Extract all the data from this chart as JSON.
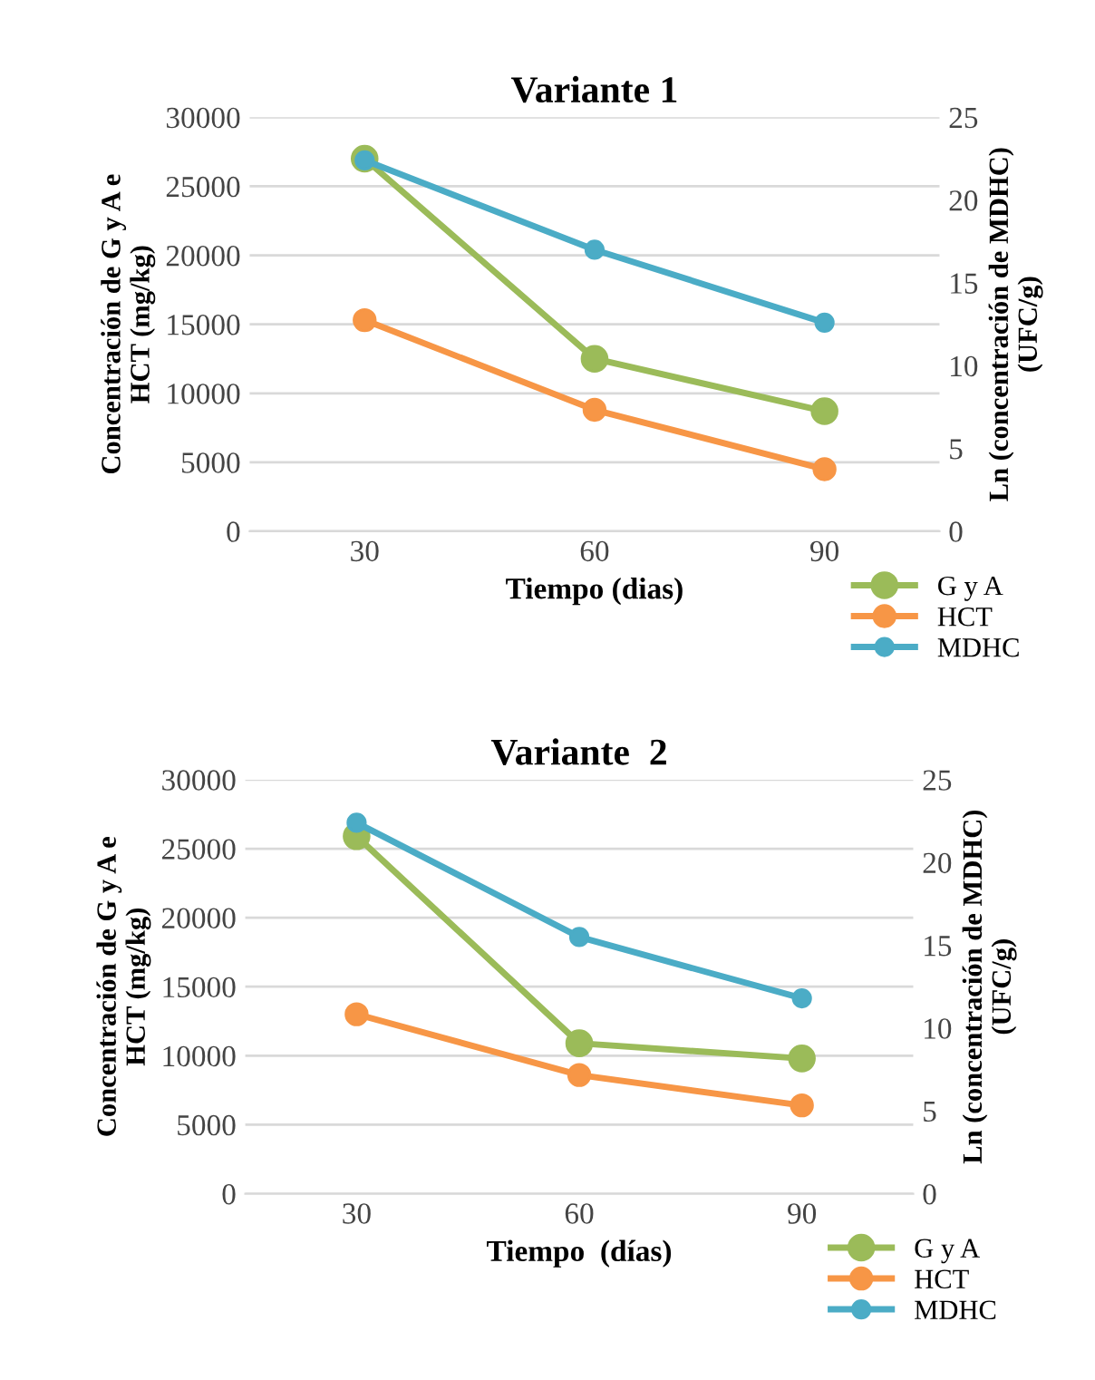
{
  "chart_data": [
    {
      "type": "line",
      "title": "Variante 1",
      "xlabel": "Tiempo (dias)",
      "ylabel": "Concentración de G y A e\nHCT (mg/kg)",
      "y2label": "Ln (concentración de MDHC)\n(UFC/g)",
      "categories": [
        "30",
        "60",
        "90"
      ],
      "ylim": [
        0,
        30000
      ],
      "yticks": [
        0,
        5000,
        10000,
        15000,
        20000,
        25000,
        30000
      ],
      "y2lim": [
        0,
        25
      ],
      "y2ticks": [
        0,
        5,
        10,
        15,
        20,
        25
      ],
      "grid": "y",
      "legend": "bottom right",
      "marker": "circle",
      "series": [
        {
          "name": "G y A",
          "color": "#9bbb59",
          "values": [
            27000,
            12500,
            8700
          ]
        },
        {
          "name": "HCT",
          "color": "#f79646",
          "values": [
            15300,
            8800,
            4500
          ]
        },
        {
          "name": "MDHC",
          "color": "#4bacc6",
          "axis": "y2",
          "values": [
            22.4,
            17.0,
            12.6
          ]
        }
      ]
    },
    {
      "type": "line",
      "title": "Variante  2",
      "xlabel": "Tiempo  (días)",
      "ylabel": "Concentración de G y A e\nHCT (mg/kg)",
      "y2label": "Ln (concentración de MDHC)\n(UFC/g)",
      "categories": [
        "30",
        "60",
        "90"
      ],
      "ylim": [
        0,
        30000
      ],
      "yticks": [
        0,
        5000,
        10000,
        15000,
        20000,
        25000,
        30000
      ],
      "y2lim": [
        0,
        25
      ],
      "y2ticks": [
        0,
        5,
        10,
        15,
        20,
        25
      ],
      "grid": "y",
      "legend": "bottom right",
      "marker": "circle",
      "series": [
        {
          "name": "G y A",
          "color": "#9bbb59",
          "values": [
            25900,
            10900,
            9800
          ]
        },
        {
          "name": "HCT",
          "color": "#f79646",
          "values": [
            13000,
            8600,
            6400
          ]
        },
        {
          "name": "MDHC",
          "color": "#4bacc6",
          "axis": "y2",
          "values": [
            22.4,
            15.5,
            11.8
          ]
        }
      ]
    }
  ]
}
